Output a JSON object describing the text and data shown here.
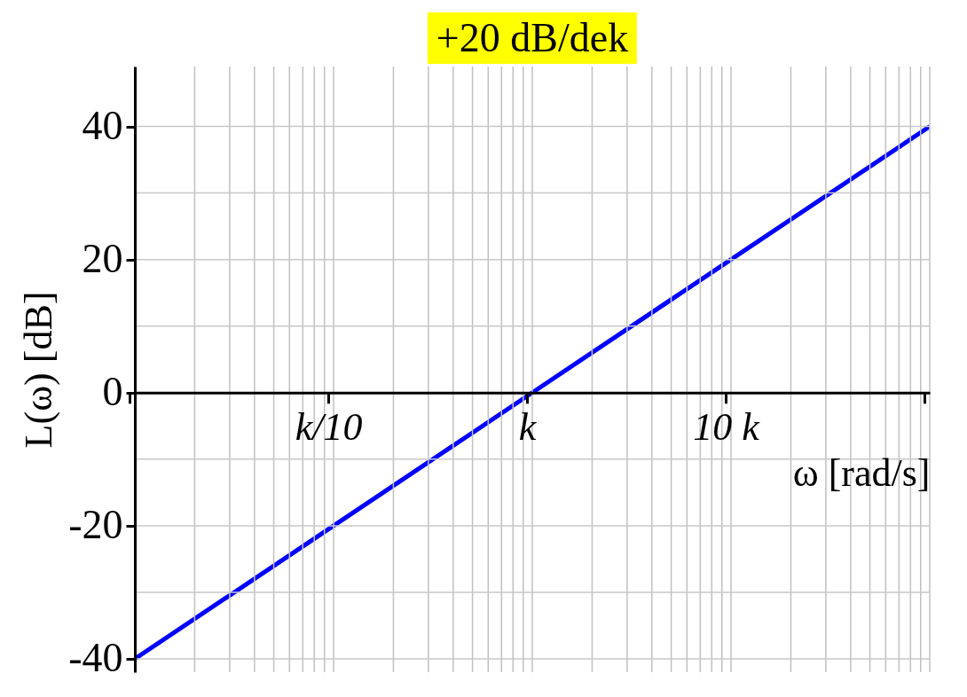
{
  "chart_data": {
    "type": "line",
    "title": "+20 dB/dek",
    "xlabel": "ω [rad/s]",
    "ylabel": "L(ω) [dB]",
    "categories": [
      null,
      "k/10",
      "k",
      "10 k",
      null
    ],
    "series": [
      {
        "color": "#0000ff",
        "values": [
          -40,
          -20,
          0,
          20,
          40
        ]
      }
    ],
    "log": "x",
    "ylim": [
      -42,
      49
    ],
    "yticks": [
      -40,
      -20,
      0,
      20,
      40
    ],
    "grid": true
  }
}
